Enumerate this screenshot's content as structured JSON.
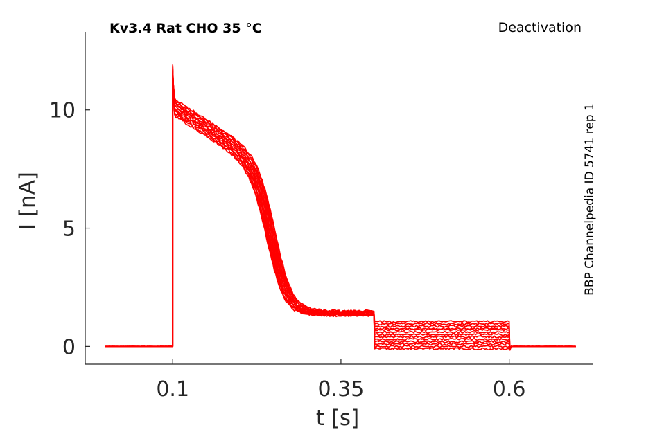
{
  "chart_data": {
    "type": "line",
    "title": "Kv3.4  Rat  CHO  35 °C",
    "protocol_label": "Deactivation",
    "side_label": "BBP Channelpedia ID 5741 rep 1",
    "xlabel": "t [s]",
    "ylabel": "I [nA]",
    "xlim": [
      -0.03,
      0.725
    ],
    "ylim": [
      -0.75,
      13.3
    ],
    "xticks": [
      0.1,
      0.35,
      0.6
    ],
    "xtick_labels": [
      "0.1",
      "0.35",
      "0.6"
    ],
    "yticks": [
      0,
      5,
      10
    ],
    "ytick_labels": [
      "0",
      "5",
      "10"
    ],
    "grid": false,
    "legend": "none",
    "color": "#ff0000",
    "series_count": 13,
    "protocol_times_s": [
      0.0,
      0.1,
      0.4,
      0.6,
      0.7
    ],
    "peak_transient_nA": 11.9,
    "activation_start_range_nA": [
      9.8,
      10.5
    ],
    "plateau_before_step_nA": [
      1.3,
      1.5
    ],
    "tail_levels_nA": [
      -0.1,
      0.0,
      0.1,
      0.2,
      0.3,
      0.4,
      0.5,
      0.6,
      0.7,
      0.75,
      0.85,
      0.95,
      1.05
    ],
    "baseline_nA": 0.0
  }
}
